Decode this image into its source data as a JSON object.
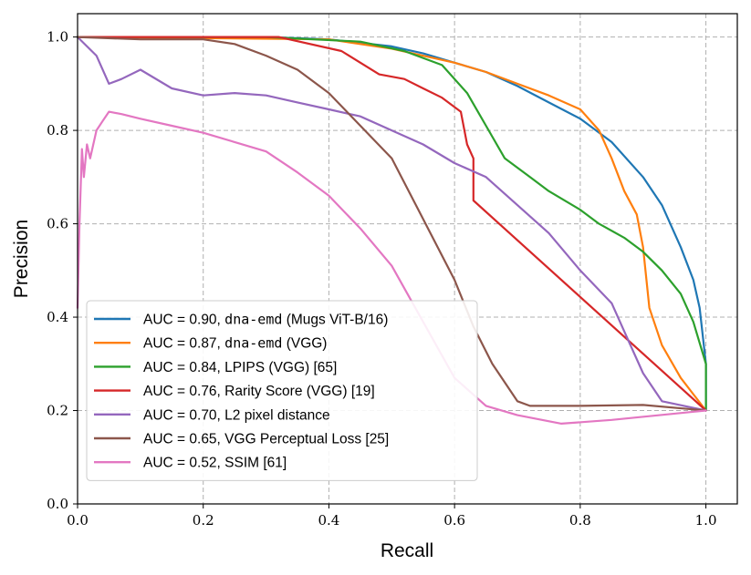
{
  "chart_data": {
    "type": "line",
    "title": "",
    "xlabel": "Recall",
    "ylabel": "Precision",
    "xlim": [
      0.0,
      1.05
    ],
    "ylim": [
      0.0,
      1.05
    ],
    "xticks": [
      "0.0",
      "0.2",
      "0.4",
      "0.6",
      "0.8",
      "1.0"
    ],
    "yticks": [
      "0.0",
      "0.2",
      "0.4",
      "0.6",
      "0.8",
      "1.0"
    ],
    "grid": true,
    "legend_position": "lower-left",
    "series": [
      {
        "name": "AUC = 0.90, dna-emd (Mugs ViT-B/16)",
        "legend_prefix": "AUC = 0.90, ",
        "legend_code": "dna-emd",
        "legend_suffix": " (Mugs ViT-B/16)",
        "color": "#1f77b4",
        "points": [
          [
            0.0,
            1.0
          ],
          [
            0.3,
            1.0
          ],
          [
            0.4,
            0.995
          ],
          [
            0.5,
            0.98
          ],
          [
            0.55,
            0.965
          ],
          [
            0.6,
            0.945
          ],
          [
            0.65,
            0.925
          ],
          [
            0.7,
            0.895
          ],
          [
            0.75,
            0.86
          ],
          [
            0.8,
            0.825
          ],
          [
            0.85,
            0.775
          ],
          [
            0.9,
            0.7
          ],
          [
            0.93,
            0.64
          ],
          [
            0.96,
            0.55
          ],
          [
            0.98,
            0.48
          ],
          [
            0.99,
            0.42
          ],
          [
            1.0,
            0.3
          ],
          [
            1.0,
            0.2
          ]
        ]
      },
      {
        "name": "AUC = 0.87, dna-emd (VGG)",
        "legend_prefix": "AUC = 0.87, ",
        "legend_code": "dna-emd",
        "legend_suffix": " (VGG)",
        "color": "#ff7f0e",
        "points": [
          [
            0.0,
            1.0
          ],
          [
            0.4,
            0.995
          ],
          [
            0.5,
            0.975
          ],
          [
            0.6,
            0.945
          ],
          [
            0.65,
            0.925
          ],
          [
            0.7,
            0.9
          ],
          [
            0.75,
            0.875
          ],
          [
            0.8,
            0.845
          ],
          [
            0.83,
            0.8
          ],
          [
            0.85,
            0.74
          ],
          [
            0.87,
            0.67
          ],
          [
            0.89,
            0.62
          ],
          [
            0.9,
            0.55
          ],
          [
            0.91,
            0.42
          ],
          [
            0.93,
            0.34
          ],
          [
            0.96,
            0.27
          ],
          [
            1.0,
            0.2
          ]
        ]
      },
      {
        "name": "AUC = 0.84, LPIPS (VGG) [65]",
        "legend_prefix": "AUC = 0.84, LPIPS (VGG) [65]",
        "legend_code": "",
        "legend_suffix": "",
        "color": "#2ca02c",
        "points": [
          [
            0.0,
            1.0
          ],
          [
            0.3,
            1.0
          ],
          [
            0.45,
            0.99
          ],
          [
            0.52,
            0.97
          ],
          [
            0.58,
            0.94
          ],
          [
            0.62,
            0.88
          ],
          [
            0.65,
            0.81
          ],
          [
            0.68,
            0.74
          ],
          [
            0.72,
            0.7
          ],
          [
            0.75,
            0.67
          ],
          [
            0.8,
            0.63
          ],
          [
            0.83,
            0.6
          ],
          [
            0.87,
            0.57
          ],
          [
            0.9,
            0.54
          ],
          [
            0.93,
            0.5
          ],
          [
            0.96,
            0.45
          ],
          [
            0.98,
            0.39
          ],
          [
            1.0,
            0.3
          ],
          [
            1.0,
            0.2
          ]
        ]
      },
      {
        "name": "AUC = 0.76, Rarity Score (VGG) [19]",
        "legend_prefix": "AUC = 0.76, Rarity Score (VGG) [19]",
        "legend_code": "",
        "legend_suffix": "",
        "color": "#d62728",
        "points": [
          [
            0.0,
            1.0
          ],
          [
            0.32,
            1.0
          ],
          [
            0.42,
            0.97
          ],
          [
            0.48,
            0.92
          ],
          [
            0.52,
            0.91
          ],
          [
            0.55,
            0.89
          ],
          [
            0.58,
            0.87
          ],
          [
            0.61,
            0.84
          ],
          [
            0.62,
            0.77
          ],
          [
            0.63,
            0.74
          ],
          [
            0.63,
            0.65
          ],
          [
            1.0,
            0.2
          ]
        ]
      },
      {
        "name": "AUC = 0.70, L2 pixel distance",
        "legend_prefix": "AUC = 0.70, L2 pixel distance",
        "legend_code": "",
        "legend_suffix": "",
        "color": "#9467bd",
        "points": [
          [
            0.0,
            1.0
          ],
          [
            0.03,
            0.96
          ],
          [
            0.05,
            0.9
          ],
          [
            0.07,
            0.91
          ],
          [
            0.1,
            0.93
          ],
          [
            0.15,
            0.89
          ],
          [
            0.2,
            0.875
          ],
          [
            0.25,
            0.88
          ],
          [
            0.3,
            0.875
          ],
          [
            0.35,
            0.86
          ],
          [
            0.4,
            0.845
          ],
          [
            0.45,
            0.83
          ],
          [
            0.5,
            0.8
          ],
          [
            0.55,
            0.77
          ],
          [
            0.6,
            0.73
          ],
          [
            0.65,
            0.7
          ],
          [
            0.7,
            0.64
          ],
          [
            0.75,
            0.58
          ],
          [
            0.8,
            0.5
          ],
          [
            0.85,
            0.43
          ],
          [
            0.88,
            0.34
          ],
          [
            0.9,
            0.28
          ],
          [
            0.93,
            0.22
          ],
          [
            1.0,
            0.2
          ]
        ]
      },
      {
        "name": "AUC = 0.65, VGG Perceptual Loss [25]",
        "legend_prefix": "AUC = 0.65, VGG Perceptual Loss [25]",
        "legend_code": "",
        "legend_suffix": "",
        "color": "#8c564b",
        "points": [
          [
            0.0,
            1.0
          ],
          [
            0.1,
            0.995
          ],
          [
            0.2,
            0.995
          ],
          [
            0.25,
            0.985
          ],
          [
            0.3,
            0.96
          ],
          [
            0.35,
            0.93
          ],
          [
            0.4,
            0.88
          ],
          [
            0.45,
            0.81
          ],
          [
            0.5,
            0.74
          ],
          [
            0.55,
            0.61
          ],
          [
            0.6,
            0.48
          ],
          [
            0.63,
            0.38
          ],
          [
            0.66,
            0.3
          ],
          [
            0.7,
            0.22
          ],
          [
            0.72,
            0.21
          ],
          [
            0.8,
            0.21
          ],
          [
            0.9,
            0.212
          ],
          [
            1.0,
            0.2
          ]
        ]
      },
      {
        "name": "AUC = 0.52, SSIM [61]",
        "legend_prefix": "AUC = 0.52, SSIM [61]",
        "legend_code": "",
        "legend_suffix": "",
        "color": "#e377c2",
        "points": [
          [
            0.0,
            0.42
          ],
          [
            0.003,
            0.6
          ],
          [
            0.007,
            0.76
          ],
          [
            0.01,
            0.7
          ],
          [
            0.015,
            0.77
          ],
          [
            0.02,
            0.74
          ],
          [
            0.03,
            0.8
          ],
          [
            0.04,
            0.82
          ],
          [
            0.05,
            0.84
          ],
          [
            0.07,
            0.835
          ],
          [
            0.1,
            0.825
          ],
          [
            0.15,
            0.81
          ],
          [
            0.2,
            0.795
          ],
          [
            0.25,
            0.775
          ],
          [
            0.3,
            0.755
          ],
          [
            0.35,
            0.71
          ],
          [
            0.4,
            0.66
          ],
          [
            0.45,
            0.59
          ],
          [
            0.5,
            0.51
          ],
          [
            0.55,
            0.39
          ],
          [
            0.6,
            0.27
          ],
          [
            0.65,
            0.21
          ],
          [
            0.7,
            0.19
          ],
          [
            0.77,
            0.172
          ],
          [
            0.85,
            0.18
          ],
          [
            1.0,
            0.2
          ]
        ]
      }
    ]
  }
}
